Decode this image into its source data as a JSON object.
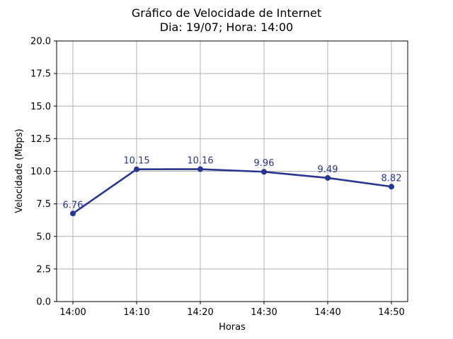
{
  "chart_data": {
    "type": "line",
    "title": "Gráfico de Velocidade de Internet",
    "subtitle": "Dia: 19/07; Hora: 14:00",
    "xlabel": "Horas",
    "ylabel": "Velocidade (Mbps)",
    "categories": [
      "14:00",
      "14:10",
      "14:20",
      "14:30",
      "14:40",
      "14:50"
    ],
    "series": [
      {
        "values": [
          6.76,
          10.15,
          10.16,
          9.96,
          9.49,
          8.82
        ],
        "labels": [
          "6.76",
          "10.15",
          "10.16",
          "9.96",
          "9.49",
          "8.82"
        ]
      }
    ],
    "ylim": [
      0,
      20
    ],
    "yticks": [
      "0.0",
      "2.5",
      "5.0",
      "7.5",
      "10.0",
      "12.5",
      "15.0",
      "17.5",
      "20.0"
    ],
    "grid": true,
    "color": "#283593"
  }
}
